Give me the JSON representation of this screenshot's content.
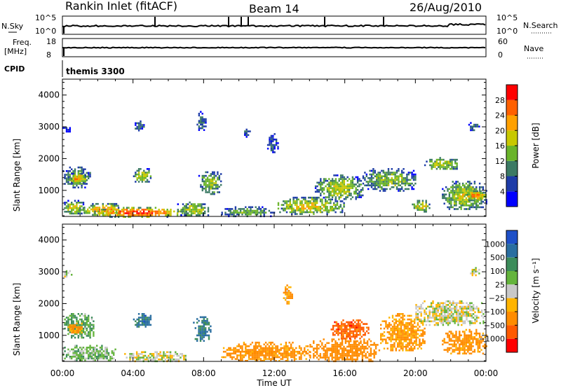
{
  "header": {
    "station": "Rankin Inlet (fitACF)",
    "beam": "Beam 14",
    "date": "26/Aug/2010"
  },
  "top_panels": {
    "nsky_label": "N.Sky",
    "nsearch_label": "N.Search",
    "nsky_ticks": [
      "10^5",
      "10^0"
    ],
    "nsearch_ticks": [
      "10^5",
      "10^0"
    ],
    "freq_label": "Freq.",
    "freq_unit": "[MHz]",
    "freq_ticks": [
      "18",
      "8"
    ],
    "nave_label": "Nave",
    "nave_ticks": [
      "60",
      "0"
    ],
    "cpid_label": "CPID",
    "cpid_value": "themis 3300"
  },
  "axes": {
    "xlabel": "Time UT",
    "ylabel": "Slant Range [km]",
    "x_ticks": [
      "00:00",
      "04:00",
      "08:00",
      "12:00",
      "16:00",
      "20:00",
      "00:00"
    ],
    "y_ticks": [
      "1000",
      "2000",
      "3000",
      "4000"
    ]
  },
  "colorbars": {
    "power": {
      "label": "Power [dB]",
      "ticks": [
        "4",
        "8",
        "12",
        "16",
        "20",
        "24",
        "28"
      ],
      "colors": [
        "#0000ff",
        "#1e3ca8",
        "#3c7a64",
        "#6ab42a",
        "#c8c800",
        "#ffa000",
        "#ff6000",
        "#ff0000"
      ]
    },
    "velocity": {
      "label": "Velocity [m s⁻¹]",
      "ticks": [
        "1000",
        "500",
        "100",
        "25",
        "−25",
        "−100",
        "−500",
        "−1000"
      ],
      "colors": [
        "#1e50c8",
        "#2a6ea0",
        "#3c8c5a",
        "#64b43c",
        "#c8c8c8",
        "#ffb400",
        "#ff8c00",
        "#ff5a00",
        "#ff0000"
      ]
    }
  },
  "chart_data": [
    {
      "type": "heatmap",
      "title": "Power [dB]",
      "xlabel": "Time UT",
      "ylabel": "Slant Range [km]",
      "xlim": [
        "00:00",
        "24:00"
      ],
      "ylim": [
        180,
        4500
      ],
      "clim": [
        0,
        30
      ],
      "blobs": [
        {
          "t0": 0.0,
          "t1": 1.6,
          "r0": 1100,
          "r1": 1750,
          "v": 14
        },
        {
          "t0": 0.3,
          "t1": 1.3,
          "r0": 1250,
          "r1": 1550,
          "v": 24
        },
        {
          "t0": 0.0,
          "t1": 1.2,
          "r0": 250,
          "r1": 700,
          "v": 18
        },
        {
          "t0": 1.2,
          "t1": 3.4,
          "r0": 200,
          "r1": 600,
          "v": 24
        },
        {
          "t0": 1.8,
          "t1": 6.8,
          "r0": 180,
          "r1": 480,
          "v": 29
        },
        {
          "t0": 4.0,
          "t1": 5.0,
          "r0": 1250,
          "r1": 1700,
          "v": 18
        },
        {
          "t0": 6.5,
          "t1": 8.3,
          "r0": 200,
          "r1": 650,
          "v": 17
        },
        {
          "t0": 7.7,
          "t1": 9.0,
          "r0": 900,
          "r1": 1600,
          "v": 16
        },
        {
          "t0": 9.0,
          "t1": 12.0,
          "r0": 200,
          "r1": 500,
          "v": 14
        },
        {
          "t0": 12.0,
          "t1": 16.0,
          "r0": 250,
          "r1": 800,
          "v": 19
        },
        {
          "t0": 14.3,
          "t1": 17.0,
          "r0": 700,
          "r1": 1500,
          "v": 17
        },
        {
          "t0": 17.0,
          "t1": 20.0,
          "r0": 1000,
          "r1": 1700,
          "v": 15
        },
        {
          "t0": 19.8,
          "t1": 20.8,
          "r0": 350,
          "r1": 700,
          "v": 20
        },
        {
          "t0": 20.5,
          "t1": 22.5,
          "r0": 1650,
          "r1": 2050,
          "v": 17
        },
        {
          "t0": 21.5,
          "t1": 24.0,
          "r0": 400,
          "r1": 1300,
          "v": 18
        },
        {
          "t0": 22.8,
          "t1": 24.0,
          "r0": 700,
          "r1": 1000,
          "v": 25
        },
        {
          "t0": 0.0,
          "t1": 0.5,
          "r0": 2850,
          "r1": 3050,
          "v": 7
        },
        {
          "t0": 4.0,
          "t1": 4.6,
          "r0": 2900,
          "r1": 3200,
          "v": 10
        },
        {
          "t0": 7.6,
          "t1": 8.1,
          "r0": 2900,
          "r1": 3500,
          "v": 9
        },
        {
          "t0": 10.2,
          "t1": 10.6,
          "r0": 2700,
          "r1": 3000,
          "v": 8
        },
        {
          "t0": 11.6,
          "t1": 12.2,
          "r0": 2200,
          "r1": 2800,
          "v": 7
        },
        {
          "t0": 23.0,
          "t1": 23.6,
          "r0": 2900,
          "r1": 3150,
          "v": 10
        }
      ]
    },
    {
      "type": "heatmap",
      "title": "Velocity [m s⁻¹]",
      "xlabel": "Time UT",
      "ylabel": "Slant Range [km]",
      "xlim": [
        "00:00",
        "24:00"
      ],
      "ylim": [
        180,
        4500
      ],
      "clim": [
        -1000,
        1000
      ],
      "blobs": [
        {
          "t0": 0.0,
          "t1": 1.8,
          "r0": 900,
          "r1": 1700,
          "v": 120
        },
        {
          "t0": 0.2,
          "t1": 1.2,
          "r0": 1100,
          "r1": 1400,
          "v": -150
        },
        {
          "t0": 4.0,
          "t1": 5.0,
          "r0": 1250,
          "r1": 1700,
          "v": 700
        },
        {
          "t0": 7.4,
          "t1": 8.4,
          "r0": 800,
          "r1": 1600,
          "v": 600
        },
        {
          "t0": 0.0,
          "t1": 3.0,
          "r0": 200,
          "r1": 700,
          "v": 60
        },
        {
          "t0": 3.5,
          "t1": 7.0,
          "r0": 200,
          "r1": 500,
          "v": 0
        },
        {
          "t0": 9.0,
          "t1": 14.0,
          "r0": 200,
          "r1": 800,
          "v": -200
        },
        {
          "t0": 14.0,
          "t1": 18.0,
          "r0": 200,
          "r1": 900,
          "v": -300
        },
        {
          "t0": 15.2,
          "t1": 17.3,
          "r0": 900,
          "r1": 1500,
          "v": -700
        },
        {
          "t0": 18.0,
          "t1": 20.5,
          "r0": 500,
          "r1": 1700,
          "v": -150
        },
        {
          "t0": 20.0,
          "t1": 24.0,
          "r0": 1300,
          "r1": 2100,
          "v": 0
        },
        {
          "t0": 21.5,
          "t1": 24.0,
          "r0": 400,
          "r1": 1200,
          "v": -200
        },
        {
          "t0": 0.0,
          "t1": 0.5,
          "r0": 2850,
          "r1": 3050,
          "v": 0
        },
        {
          "t0": 12.5,
          "t1": 13.0,
          "r0": 2000,
          "r1": 2600,
          "v": -120
        },
        {
          "t0": 23.0,
          "t1": 23.6,
          "r0": 2900,
          "r1": 3150,
          "v": 0
        }
      ]
    }
  ]
}
